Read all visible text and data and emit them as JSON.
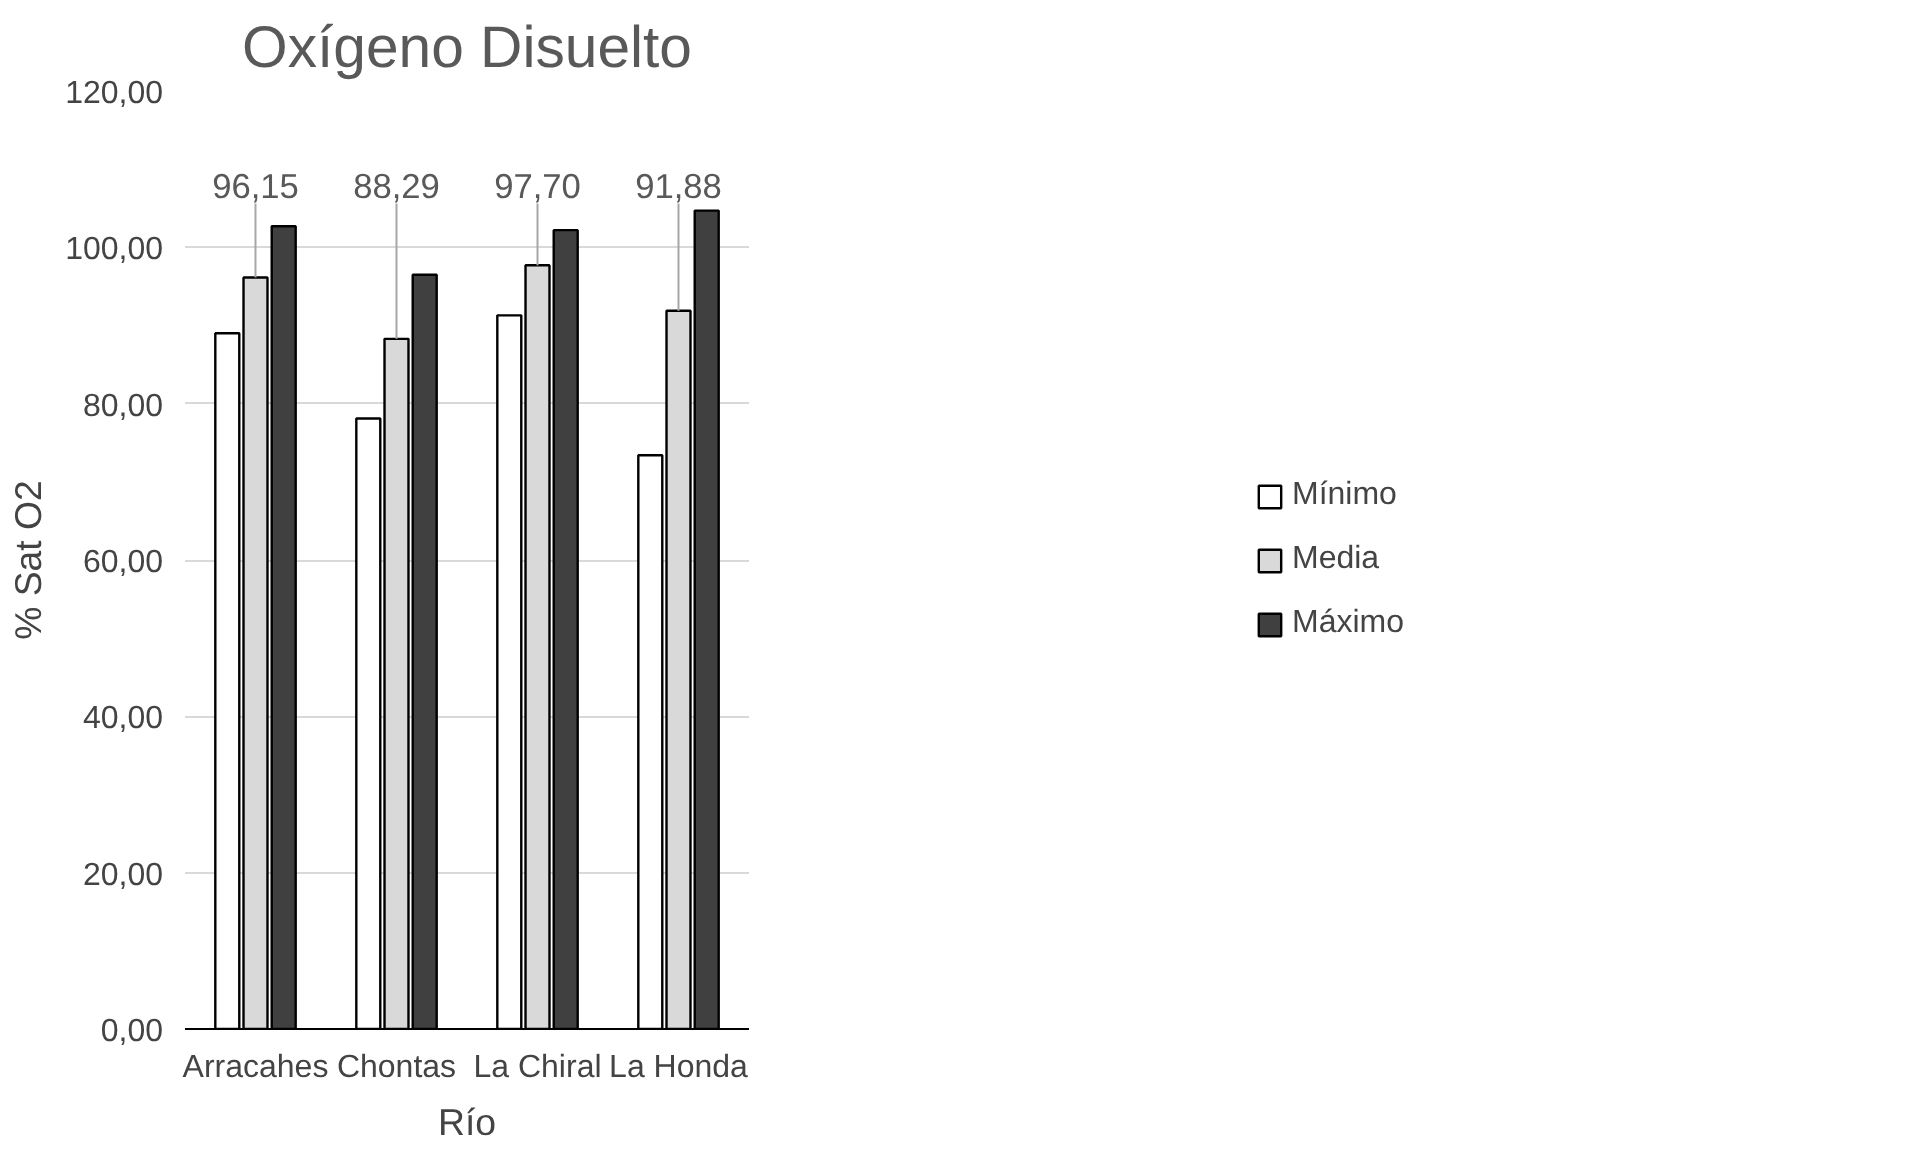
{
  "chart_data": {
    "type": "bar",
    "title": "Oxígeno Disuelto",
    "xlabel": "Río",
    "ylabel": "% Sat O2",
    "categories": [
      "Arracahes",
      "Chontas",
      "La Chiral",
      "La Honda"
    ],
    "series": [
      {
        "name": "Mínimo",
        "color": "#ffffff",
        "values": [
          89.0,
          78.1,
          91.3,
          73.4
        ]
      },
      {
        "name": "Media",
        "color": "#d9d9d9",
        "values": [
          96.15,
          88.29,
          97.7,
          91.88
        ],
        "value_labels": [
          "96,15",
          "88,29",
          "97,70",
          "91,88"
        ]
      },
      {
        "name": "Máximo",
        "color": "#404040",
        "values": [
          102.7,
          96.5,
          102.2,
          104.7
        ]
      }
    ],
    "ylim": [
      0,
      120
    ],
    "yticks": [
      {
        "value": 0,
        "label": "0,00"
      },
      {
        "value": 20,
        "label": "20,00"
      },
      {
        "value": 40,
        "label": "40,00"
      },
      {
        "value": 60,
        "label": "60,00"
      },
      {
        "value": 80,
        "label": "80,00"
      },
      {
        "value": 100,
        "label": "100,00"
      },
      {
        "value": 120,
        "label": "120,00"
      }
    ],
    "grid": "y",
    "legend": "right"
  }
}
